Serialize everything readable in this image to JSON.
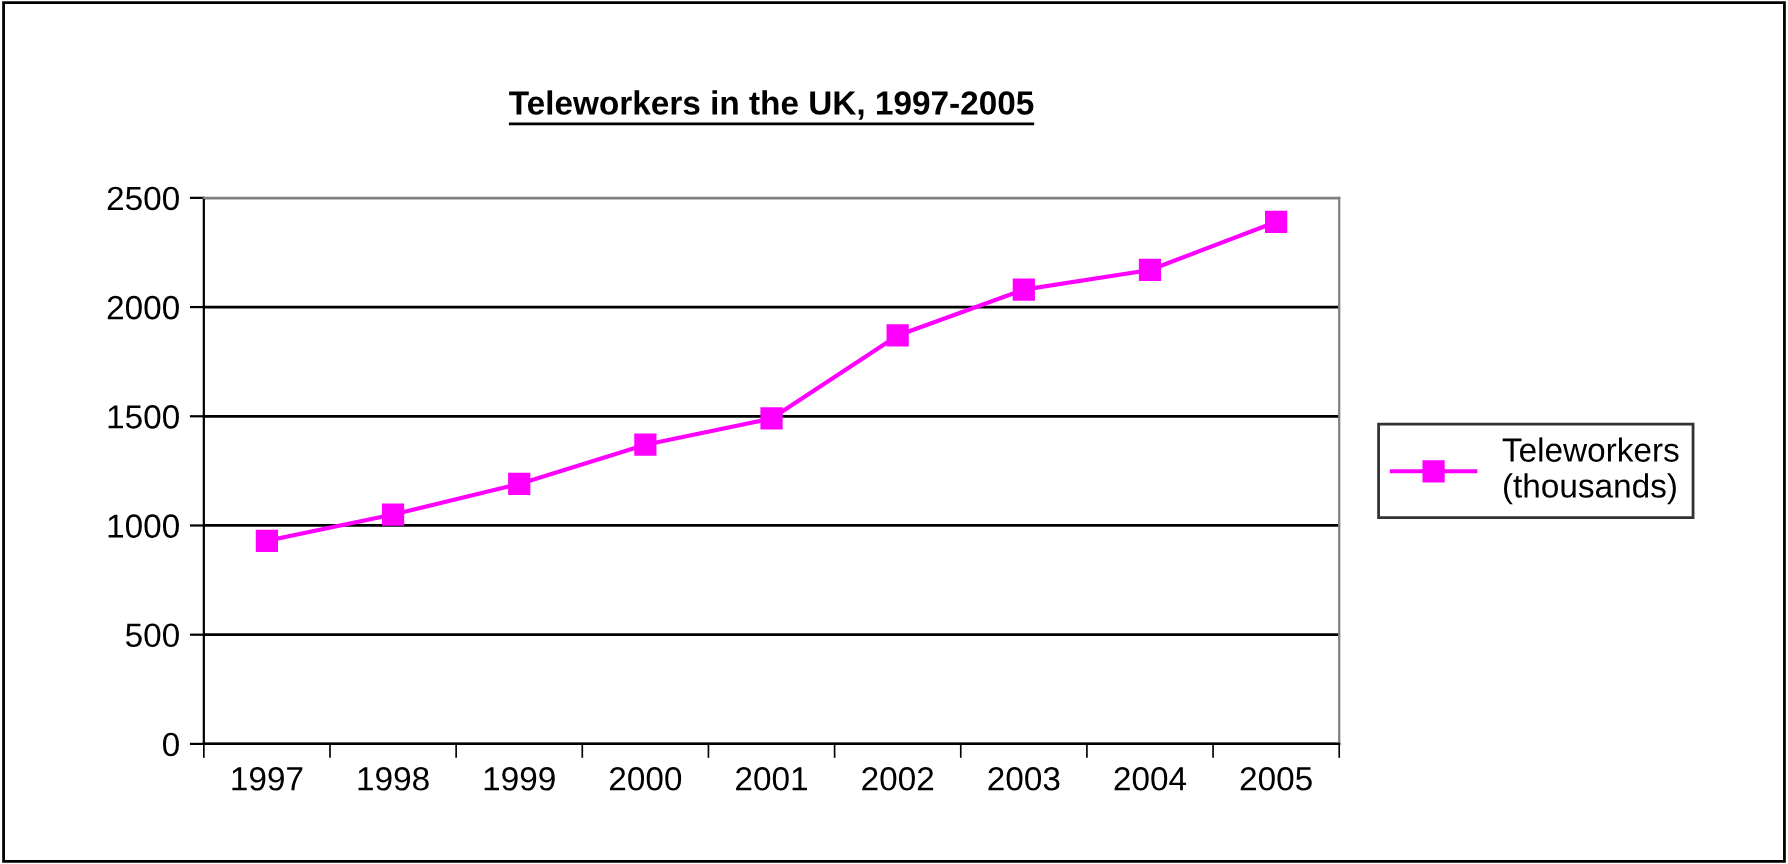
{
  "chart_data": {
    "type": "line",
    "title": "Teleworkers in the UK, 1997-2005",
    "categories": [
      "1997",
      "1998",
      "1999",
      "2000",
      "2001",
      "2002",
      "2003",
      "2004",
      "2005"
    ],
    "series": [
      {
        "name": "Teleworkers\n(thousands)",
        "color": "#ff00ff",
        "values": [
          930,
          1050,
          1190,
          1370,
          1490,
          1870,
          2080,
          2170,
          2390
        ]
      }
    ],
    "ylim": [
      0,
      2500
    ],
    "yticks": [
      0,
      500,
      1000,
      1500,
      2000,
      2500
    ],
    "grid": "y",
    "legend": "right",
    "marker": "square",
    "line_style": "solid"
  }
}
